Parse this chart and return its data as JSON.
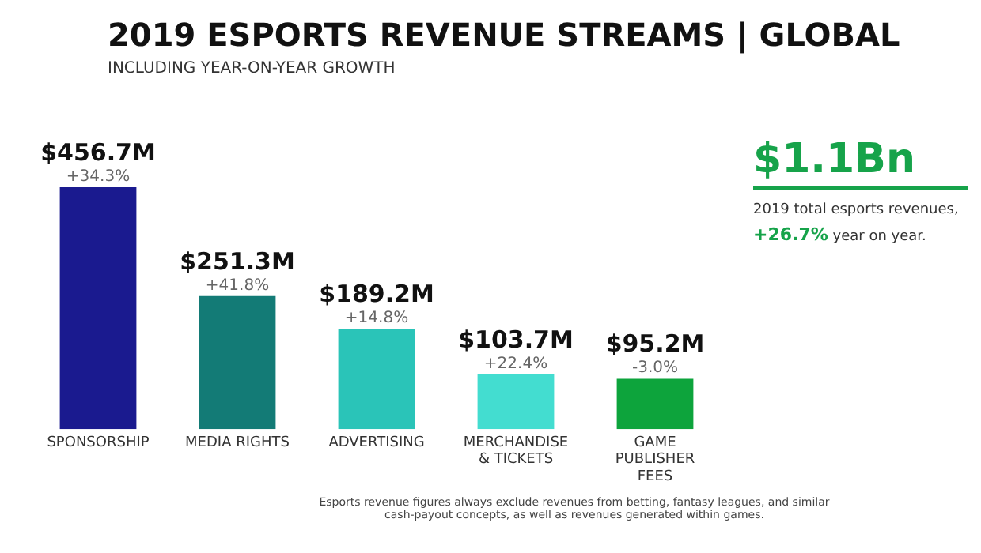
{
  "chart_data": {
    "type": "bar",
    "title": "2019 ESPORTS REVENUE STREAMS | GLOBAL",
    "subtitle": "INCLUDING YEAR-ON-YEAR GROWTH",
    "categories": [
      "SPONSORSHIP",
      "MEDIA RIGHTS",
      "ADVERTISING",
      "MERCHANDISE & TICKETS",
      "GAME PUBLISHER FEES"
    ],
    "values": [
      456.7,
      251.3,
      189.2,
      103.7,
      95.2
    ],
    "colors": [
      "#1a1a8f",
      "#137b76",
      "#2ac4b8",
      "#43ddd0",
      "#0da43c"
    ],
    "value_labels": [
      "$456.7M",
      "$251.3M",
      "$189.2M",
      "$103.7M",
      "$95.2M"
    ],
    "annotations": [
      {
        "text": "+34.3%",
        "x": "SPONSORSHIP",
        "y": 456.7
      },
      {
        "text": "+41.8%",
        "x": "MEDIA RIGHTS",
        "y": 251.3
      },
      {
        "text": "+14.8%",
        "x": "ADVERTISING",
        "y": 189.2
      },
      {
        "text": "+22.4%",
        "x": "MERCHANDISE & TICKETS",
        "y": 103.7
      },
      {
        "text": "-3.0%",
        "x": "GAME PUBLISHER FEES",
        "y": 95.2
      },
      "$1.1Bn",
      "2019 total esports revenues,",
      "+26.7% year on year.",
      "Esports revenue figures always exclude revenues from betting, fantasy leagues, and similar cash-payout concepts, as well as revenues generated within games."
    ],
    "grid": false,
    "legend": false
  }
}
